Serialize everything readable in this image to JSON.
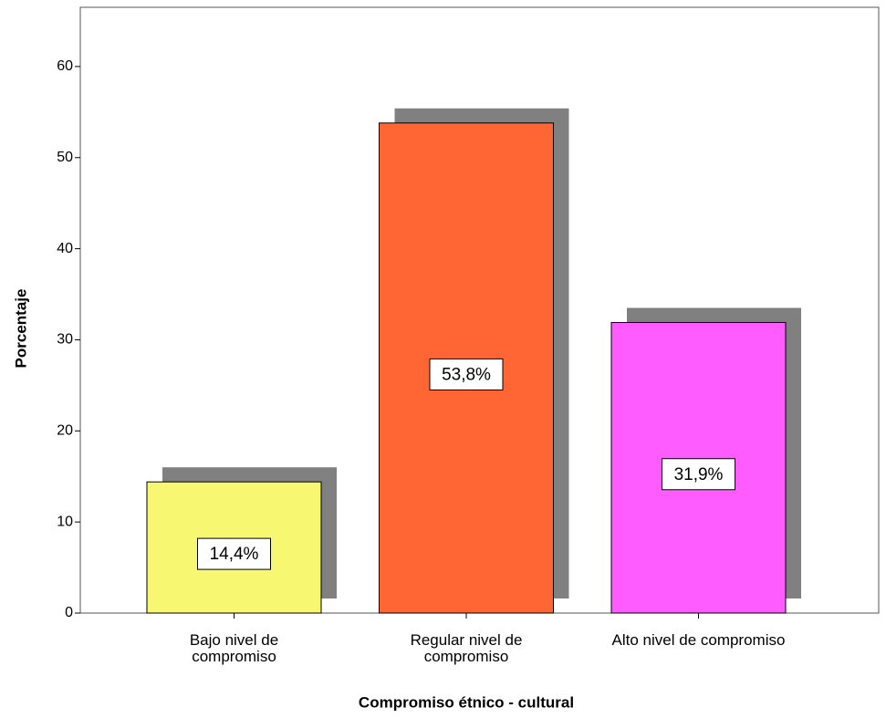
{
  "chart_data": {
    "type": "bar",
    "x_label": "Compromiso étnico - cultural",
    "y_label": "Porcentaje",
    "categories": [
      "Bajo nivel de compromiso",
      "Regular nivel de compromiso",
      "Alto nivel de compromiso"
    ],
    "values": [
      14.4,
      53.8,
      31.9
    ],
    "value_labels": [
      "14,4%",
      "53,8%",
      "31,9%"
    ],
    "colors": [
      "#f7f772",
      "#ff6633",
      "#ff5cff"
    ],
    "shadow_color": "#808080",
    "ylim": [
      0,
      66.5
    ],
    "yticks": [
      0,
      10,
      20,
      30,
      40,
      50,
      60
    ],
    "grid": false
  }
}
